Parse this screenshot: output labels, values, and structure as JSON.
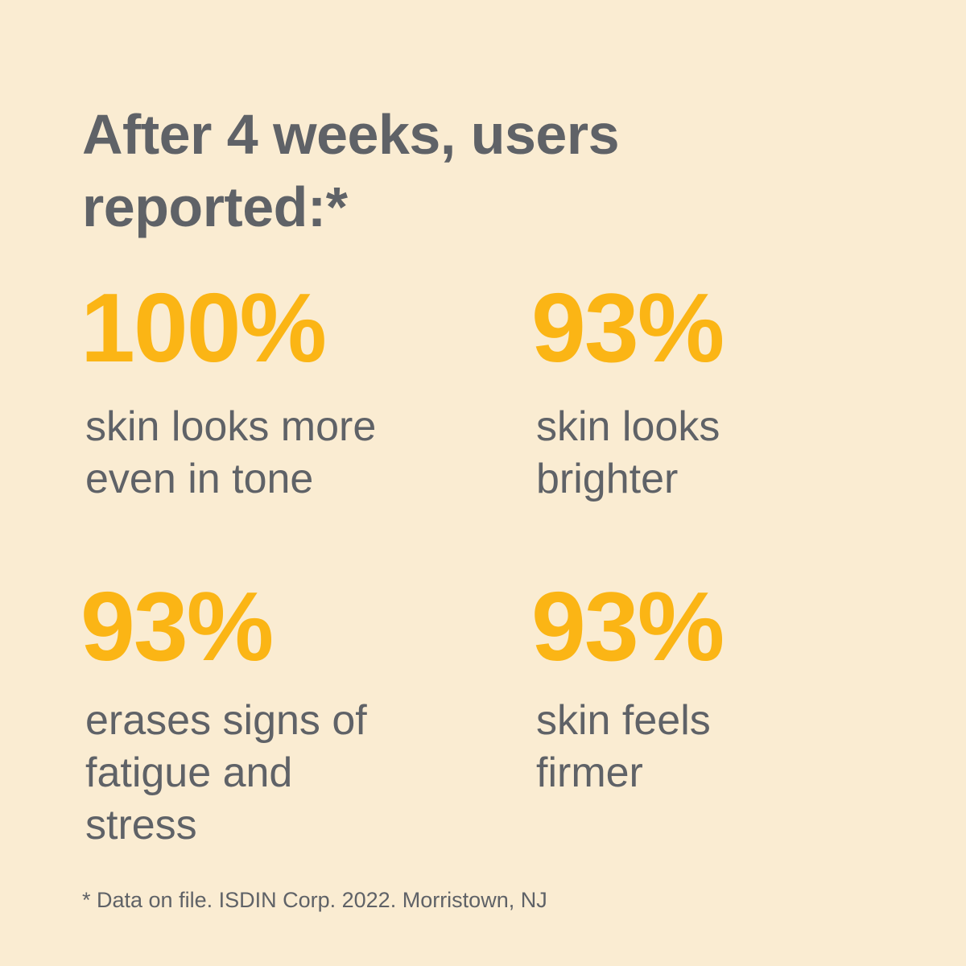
{
  "headline": {
    "line1": "After 4 weeks, users",
    "line2": "reported:*"
  },
  "stats": [
    {
      "value": "100%",
      "description": [
        "skin looks more",
        "even in tone"
      ]
    },
    {
      "value": "93%",
      "description": [
        "skin looks",
        "brighter"
      ]
    },
    {
      "value": "93%",
      "description": [
        "erases signs of",
        "fatigue and",
        "stress"
      ]
    },
    {
      "value": "93%",
      "description": [
        "skin feels",
        "firmer"
      ]
    }
  ],
  "footnote": "* Data on file. ISDIN Corp. 2022. Morristown, NJ",
  "colors": {
    "background": "#FAECD2",
    "accent": "#FBB515",
    "text": "#5F6267"
  }
}
